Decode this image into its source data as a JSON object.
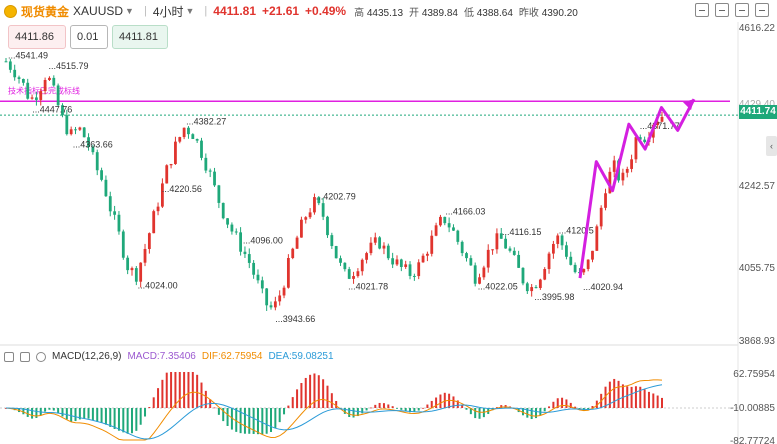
{
  "header": {
    "name": "现货黄金",
    "symbol": "XAUUSD",
    "interval": "4小时",
    "price": "4411.81",
    "change": "+21.61",
    "change_pct": "+0.49%",
    "high_label": "高",
    "high": "4435.13",
    "open_label": "开",
    "open": "4389.84",
    "low_label": "低",
    "low": "4388.64",
    "prev_label": "昨收",
    "prev": "4390.20"
  },
  "trade": {
    "sell": "4411.86",
    "qty": "0.01",
    "buy": "4411.81"
  },
  "axis": {
    "labels": [
      "4616.22",
      "4429.40",
      "4242.57",
      "4055.75",
      "3868.93"
    ],
    "current": "4411.74",
    "macd_labels": [
      "62.75954",
      "-10.00885",
      "-82.77724"
    ]
  },
  "alert_line": {
    "label": "技术指标已完成标线",
    "color": "#e020e0"
  },
  "annotations": [
    "4541.49",
    "4515.79",
    "4447.76",
    "4363.66",
    "4382.27",
    "4024.00",
    "4220.56",
    "4096.00",
    "3943.66",
    "4202.79",
    "4021.78",
    "4166.03",
    "4116.15",
    "4022.05",
    "4120.5",
    "3995.98",
    "4020.94",
    "4371.77"
  ],
  "macd": {
    "title": "MACD(12,26,9)",
    "macd": "MACD:7.35406",
    "dif": "DIF:62.75954",
    "dea": "DEA:59.08251"
  },
  "colors": {
    "up": "#e0342e",
    "down": "#1fa87a",
    "arrow": "#d41fe0"
  },
  "chart_data": {
    "type": "candlestick",
    "title": "XAUUSD 4小时",
    "ylim": [
      3868.93,
      4616.22
    ],
    "close_series": [
      4541,
      4520,
      4490,
      4447,
      4470,
      4515,
      4460,
      4400,
      4363,
      4380,
      4350,
      4290,
      4250,
      4180,
      4120,
      4050,
      4024,
      4080,
      4150,
      4220,
      4290,
      4340,
      4382,
      4370,
      4330,
      4280,
      4220,
      4170,
      4130,
      4096,
      4060,
      4010,
      3960,
      3943,
      3990,
      4060,
      4120,
      4170,
      4202,
      4180,
      4120,
      4060,
      4021,
      4040,
      4070,
      4090,
      4110,
      4080,
      4060,
      4040,
      4030,
      4050,
      4090,
      4130,
      4166,
      4140,
      4100,
      4060,
      4022,
      4060,
      4100,
      4116,
      4090,
      4050,
      4010,
      3996,
      4030,
      4080,
      4120,
      4090,
      4040,
      4020,
      4060,
      4140,
      4240,
      4290,
      4250,
      4300,
      4371,
      4360,
      4400,
      4411
    ],
    "projection": [
      [
        4020,
        "start"
      ],
      [
        4300,
        "peak1"
      ],
      [
        4230,
        "dip1"
      ],
      [
        4390,
        "peak2"
      ],
      [
        4330,
        "dip2"
      ],
      [
        4430,
        "peak3"
      ],
      [
        4375,
        "dip3"
      ],
      [
        4450,
        "target"
      ]
    ],
    "alert_level": 4445
  }
}
